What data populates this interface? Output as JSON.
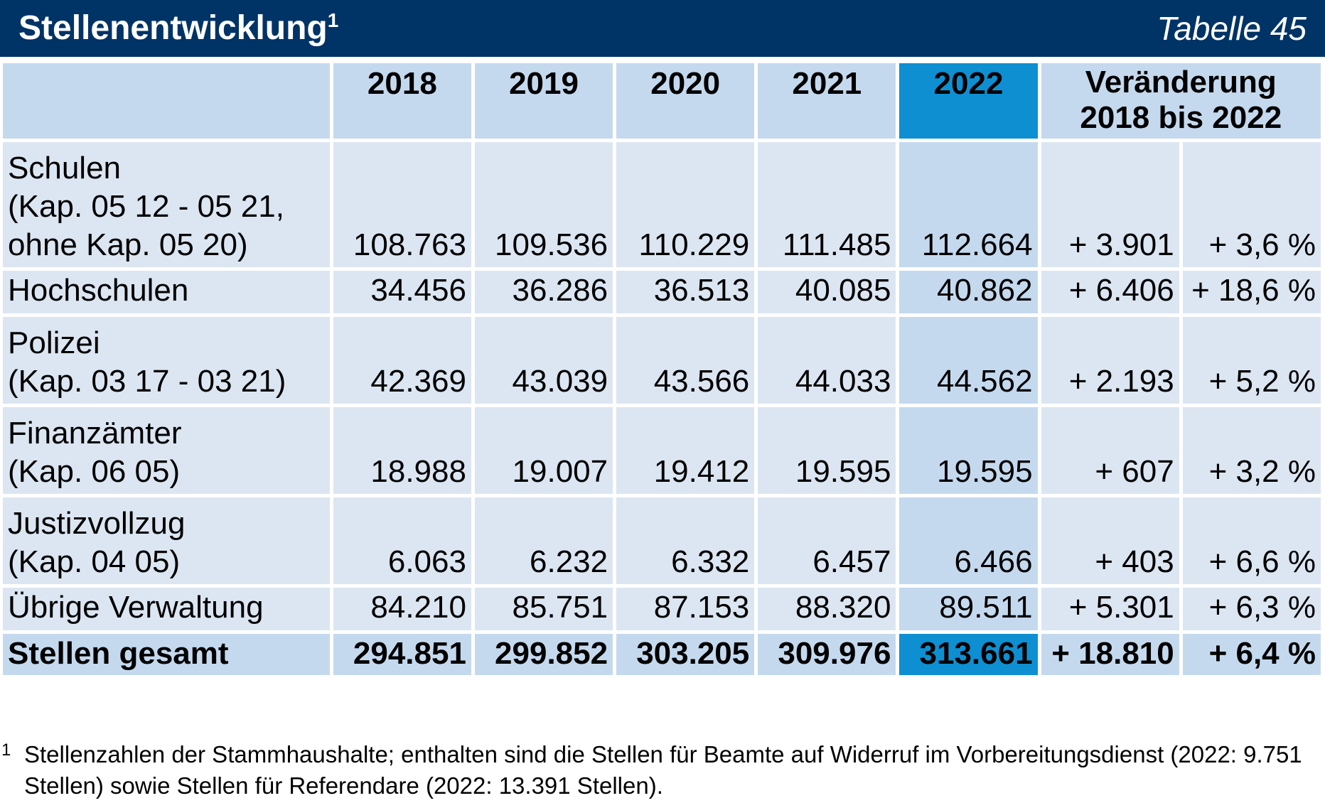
{
  "header": {
    "title": "Stellenentwicklung",
    "title_footnote": "1",
    "table_label": "Tabelle 45"
  },
  "columns": {
    "years": [
      "2018",
      "2019",
      "2020",
      "2021",
      "2022"
    ],
    "change_header_line1": "Veränderung",
    "change_header_line2": "2018 bis 2022"
  },
  "rows": [
    {
      "label_lines": [
        "Schulen",
        "(Kap. 05 12 - 05 21,",
        "ohne Kap. 05 20)"
      ],
      "values": [
        "108.763",
        "109.536",
        "110.229",
        "111.485",
        "112.664"
      ],
      "change_abs": "+ 3.901",
      "change_pct": "+ 3,6 %"
    },
    {
      "label_lines": [
        "Hochschulen"
      ],
      "values": [
        "34.456",
        "36.286",
        "36.513",
        "40.085",
        "40.862"
      ],
      "change_abs": "+ 6.406",
      "change_pct": "+ 18,6 %"
    },
    {
      "label_lines": [
        "Polizei",
        "(Kap. 03 17 - 03 21)"
      ],
      "values": [
        "42.369",
        "43.039",
        "43.566",
        "44.033",
        "44.562"
      ],
      "change_abs": "+ 2.193",
      "change_pct": "+ 5,2 %"
    },
    {
      "label_lines": [
        "Finanzämter",
        "(Kap. 06 05)"
      ],
      "values": [
        "18.988",
        "19.007",
        "19.412",
        "19.595",
        "19.595"
      ],
      "change_abs": "+ 607",
      "change_pct": "+ 3,2 %"
    },
    {
      "label_lines": [
        "Justizvollzug",
        "(Kap. 04 05)"
      ],
      "values": [
        "6.063",
        "6.232",
        "6.332",
        "6.457",
        "6.466"
      ],
      "change_abs": "+ 403",
      "change_pct": "+ 6,6 %"
    },
    {
      "label_lines": [
        "Übrige Verwaltung"
      ],
      "values": [
        "84.210",
        "85.751",
        "87.153",
        "88.320",
        "89.511"
      ],
      "change_abs": "+ 5.301",
      "change_pct": "+ 6,3 %"
    }
  ],
  "total": {
    "label": "Stellen gesamt",
    "values": [
      "294.851",
      "299.852",
      "303.205",
      "309.976",
      "313.661"
    ],
    "change_abs": "+ 18.810",
    "change_pct": "+ 6,4 %"
  },
  "footnote": {
    "mark": "1",
    "text": "Stellenzahlen der Stammhaushalte; enthalten sind die Stellen für Beamte auf Widerruf im Vorbereitungsdienst (2022: 9.751 Stellen) sowie Stellen für Referendare (2022: 13.391 Stellen)."
  },
  "colors": {
    "title_bar": "#003366",
    "header_cell": "#c5d9ee",
    "body_cell": "#dce6f2",
    "highlight_year": "#0e8fd1"
  }
}
